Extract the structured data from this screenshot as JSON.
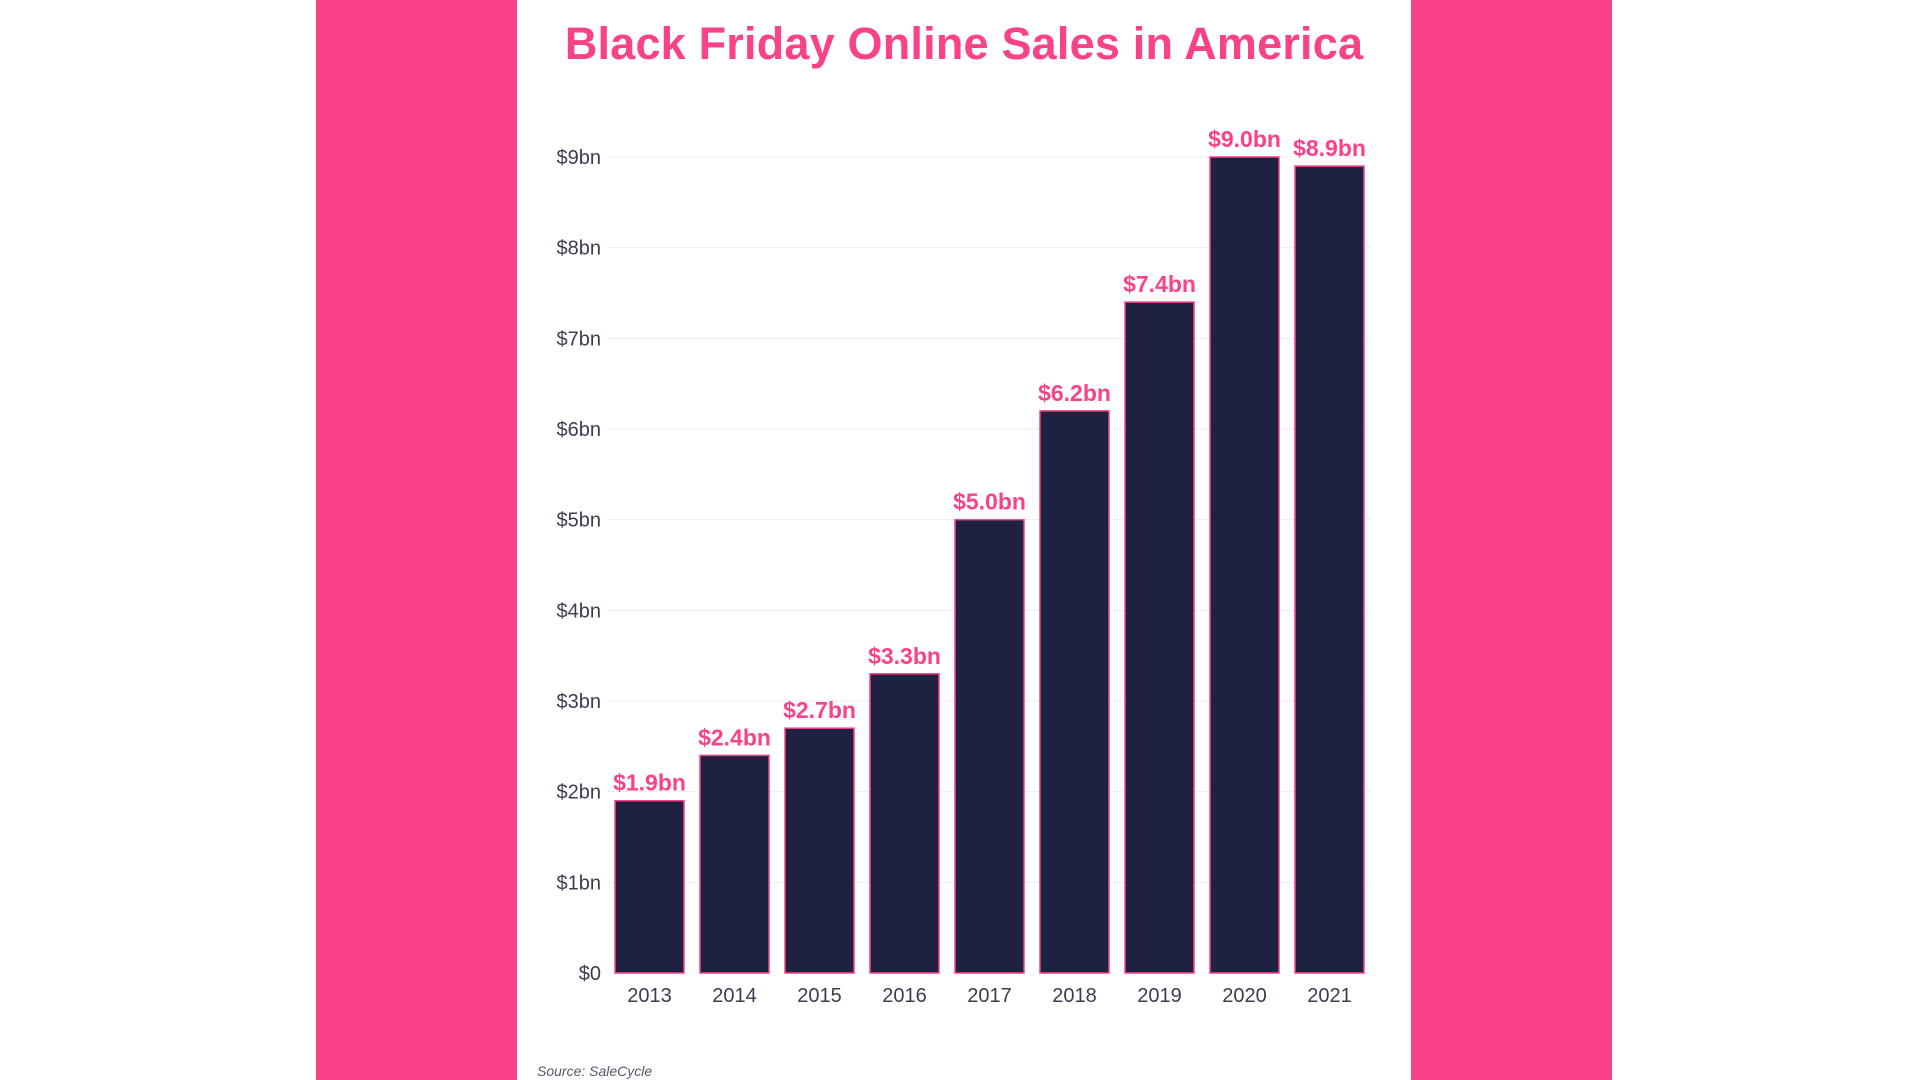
{
  "colors": {
    "accent": "#fa4288",
    "bar": "#1e2140",
    "axis_text": "#3c3c50",
    "source_text": "#56566a",
    "grid": "#eeeeee",
    "background": "#ffffff"
  },
  "chart_data": {
    "type": "bar",
    "title": "Black Friday Online Sales in America",
    "source": "Source: SaleCycle",
    "xlabel": "",
    "ylabel": "",
    "categories": [
      "2013",
      "2014",
      "2015",
      "2016",
      "2017",
      "2018",
      "2019",
      "2020",
      "2021"
    ],
    "values": [
      1.9,
      2.4,
      2.7,
      3.3,
      5.0,
      6.2,
      7.4,
      9.0,
      8.9
    ],
    "value_labels": [
      "$1.9bn",
      "$2.4bn",
      "$2.7bn",
      "$3.3bn",
      "$5.0bn",
      "$6.2bn",
      "$7.4bn",
      "$9.0bn",
      "$8.9bn"
    ],
    "y_ticks": [
      0,
      1,
      2,
      3,
      4,
      5,
      6,
      7,
      8,
      9
    ],
    "y_tick_labels": [
      "$0",
      "$1bn",
      "$2bn",
      "$3bn",
      "$4bn",
      "$5bn",
      "$6bn",
      "$7bn",
      "$8bn",
      "$9bn"
    ],
    "ylim": [
      0,
      9
    ],
    "grid": true,
    "legend": "none"
  }
}
